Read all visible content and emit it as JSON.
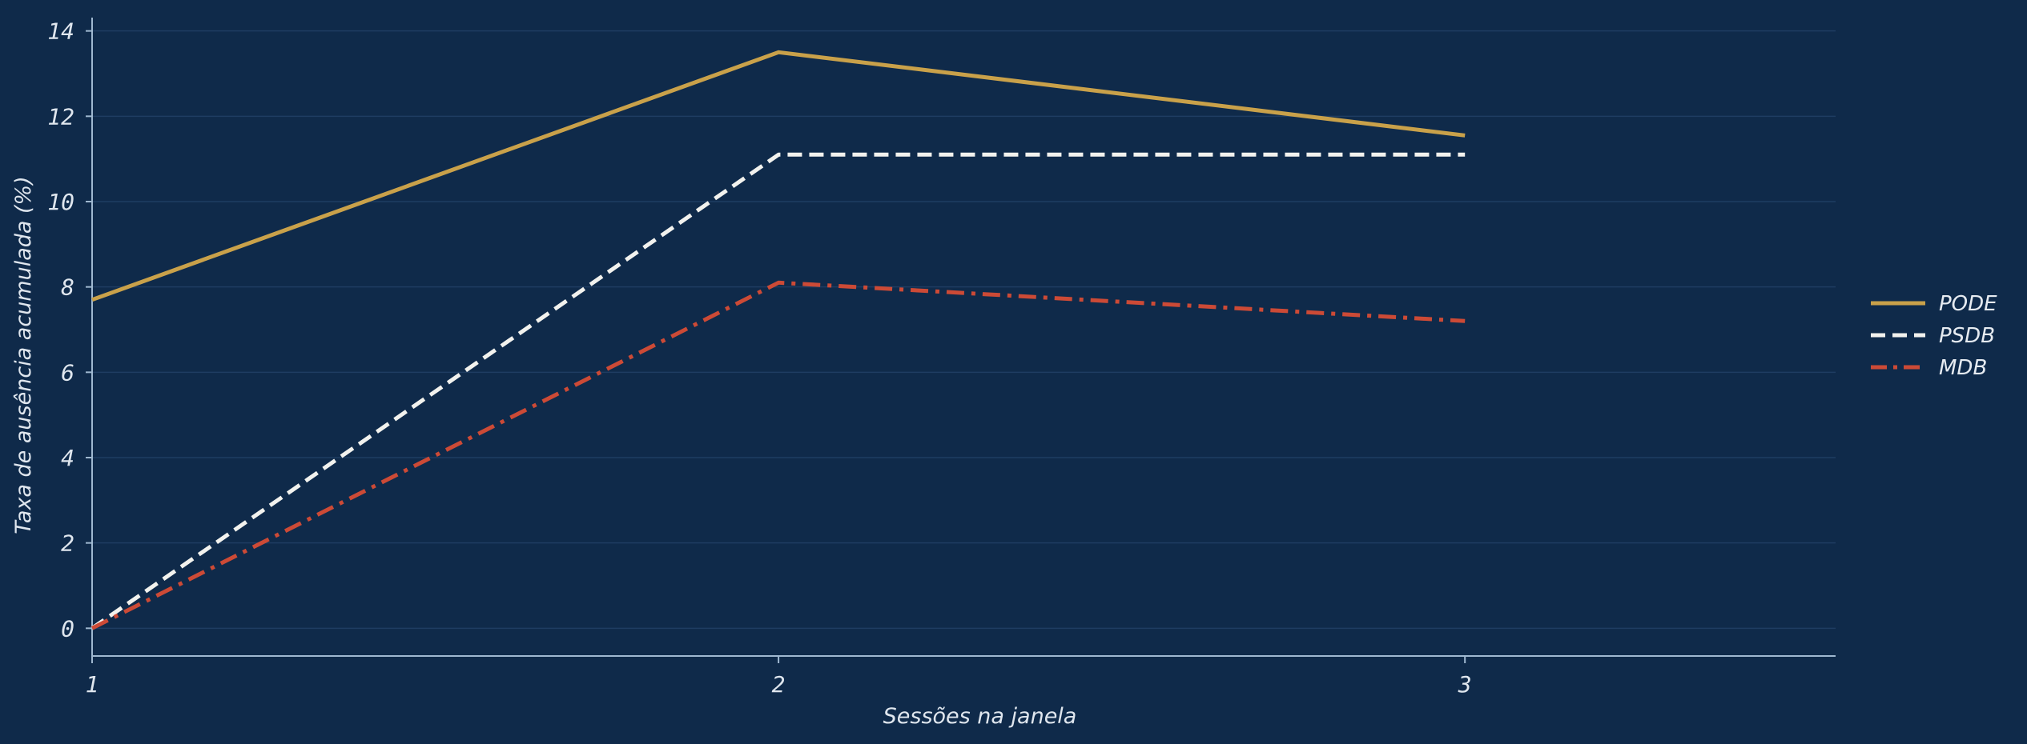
{
  "chart_data": {
    "type": "line",
    "title": "",
    "xlabel": "Sessões na janela",
    "ylabel": "Taxa de ausência acumulada (%)",
    "x": [
      1,
      2,
      3
    ],
    "xlim": [
      1,
      3.54
    ],
    "ylim": [
      -0.65,
      14.2
    ],
    "xticks": [
      1,
      2,
      3
    ],
    "yticks": [
      0,
      2,
      4,
      6,
      8,
      10,
      12,
      14
    ],
    "grid": "horizontal",
    "legend_position": "right",
    "background": "#0f2a4a",
    "series": [
      {
        "name": "PODE",
        "values": [
          7.7,
          13.5,
          11.55
        ],
        "color": "#c9a14a",
        "style": "solid"
      },
      {
        "name": "PSDB",
        "values": [
          0,
          11.1,
          11.1
        ],
        "color": "#f2f2ee",
        "style": "dashed"
      },
      {
        "name": "MDB",
        "values": [
          0,
          8.1,
          7.2
        ],
        "color": "#cc4a36",
        "style": "dashdot"
      }
    ]
  }
}
